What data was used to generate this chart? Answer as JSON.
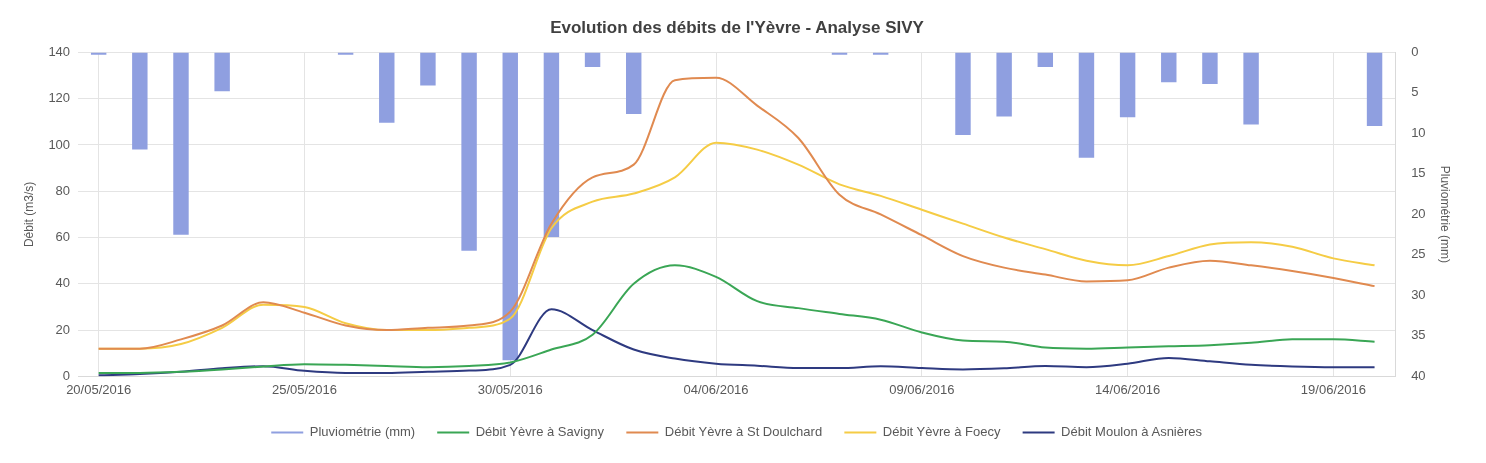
{
  "chart_data": {
    "type": "line",
    "title": "Evolution des débits de l'Yèvre - Analyse SIVY",
    "categories": [
      "20/05/2016",
      null,
      null,
      null,
      null,
      "25/05/2016",
      null,
      null,
      null,
      null,
      "30/05/2016",
      null,
      null,
      null,
      null,
      "04/06/2016",
      null,
      null,
      null,
      null,
      "09/06/2016",
      null,
      null,
      null,
      null,
      "14/06/2016",
      null,
      null,
      null,
      null,
      "19/06/2016",
      null
    ],
    "ylabel": "Débit (m3/s)",
    "y2label": "Pluviométrie (mm)",
    "ylim": [
      0,
      140
    ],
    "yticks": [
      0,
      20,
      40,
      60,
      80,
      100,
      120,
      140
    ],
    "y2lim": [
      40,
      0
    ],
    "y2ticks": [
      0,
      5,
      10,
      15,
      20,
      25,
      30,
      35,
      40
    ],
    "grid": true,
    "legend": "bottom",
    "line_style": "solid",
    "marker": "none",
    "series": [
      {
        "name": "Pluviométrie (mm)",
        "type": "bar",
        "axis": "y2",
        "color": "#8f9fe0",
        "values": [
          0.3,
          12,
          22.5,
          4.8,
          null,
          null,
          0.3,
          8.7,
          4.1,
          24.5,
          38,
          22.8,
          1.8,
          7.6,
          null,
          null,
          null,
          null,
          0.3,
          0.3,
          null,
          10.2,
          7.9,
          1.8,
          13,
          8,
          3.7,
          3.9,
          8.9,
          null,
          null,
          9.1
        ]
      },
      {
        "name": "Débit Yèvre à Savigny",
        "color": "#3aa655",
        "values": [
          1.5,
          1.5,
          2,
          3,
          4.3,
          5.3,
          5,
          4.5,
          4,
          4.5,
          6,
          11.6,
          18,
          40,
          48,
          43,
          32.5,
          29.5,
          27,
          24.5,
          19,
          15.5,
          15,
          12.5,
          12,
          12.5,
          13,
          13.5,
          14.5,
          16,
          16,
          15
        ]
      },
      {
        "name": "Débit Yèvre à St Doulchard",
        "color": "#e08a50",
        "values": [
          12,
          12,
          16,
          22,
          32,
          27.5,
          22,
          20,
          21,
          22,
          28,
          66,
          86,
          91.5,
          128,
          129,
          117,
          103,
          78.5,
          70,
          61,
          52,
          47,
          44,
          41,
          41.5,
          47,
          50,
          48,
          45.5,
          42.5,
          39
        ]
      },
      {
        "name": "Débit Yèvre à Foecy",
        "color": "#f5cc45",
        "values": [
          12,
          12,
          14,
          21,
          31,
          30,
          23,
          20,
          20,
          21,
          25,
          64,
          75.5,
          79,
          86,
          101,
          98,
          91.5,
          83,
          78,
          72,
          66,
          60,
          55,
          50,
          48,
          52,
          57,
          58,
          56,
          51,
          48
        ]
      },
      {
        "name": "Débit Moulon à Asnières",
        "color": "#2e3a80",
        "values": [
          0.5,
          1,
          2,
          3.5,
          4.4,
          2.4,
          1.5,
          1.5,
          2,
          2.5,
          5,
          29,
          20,
          11.6,
          7.7,
          5.5,
          4.6,
          3.6,
          3.6,
          4.4,
          3.6,
          3,
          3.5,
          4.5,
          4,
          5.5,
          8,
          6.5,
          5,
          4.3,
          4,
          4
        ]
      }
    ]
  }
}
